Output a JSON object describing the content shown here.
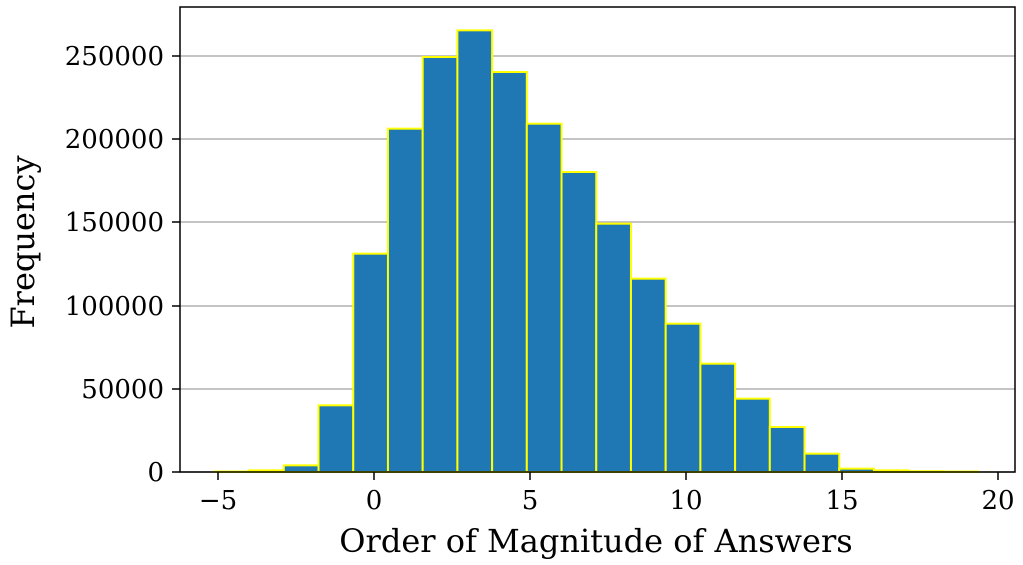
{
  "chart_data": {
    "type": "bar",
    "xlabel": "Order of Magnitude of Answers",
    "ylabel": "Frequency",
    "xlim": [
      -6.2,
      20.5
    ],
    "ylim": [
      0,
      279000
    ],
    "x_ticks": [
      -5,
      0,
      5,
      10,
      15,
      20
    ],
    "x_tick_labels": [
      "−5",
      "0",
      "5",
      "10",
      "15",
      "20"
    ],
    "y_ticks": [
      0,
      50000,
      100000,
      150000,
      200000,
      250000
    ],
    "y_tick_labels": [
      "0",
      "50000",
      "100000",
      "150000",
      "200000",
      "250000"
    ],
    "grid": "horizontal",
    "bin_edges": [
      -5.1,
      -3.99,
      -2.88,
      -1.77,
      -0.66,
      0.45,
      1.56,
      2.67,
      3.78,
      4.89,
      6.0,
      7.11,
      8.22,
      9.33,
      10.44,
      11.55,
      12.66,
      13.77,
      14.88,
      15.99,
      17.1,
      18.21,
      19.32
    ],
    "values": [
      300,
      1000,
      4000,
      40000,
      131000,
      206000,
      249000,
      265000,
      240000,
      209000,
      180000,
      149000,
      116000,
      89000,
      65000,
      44000,
      27000,
      11000,
      2000,
      1000,
      500,
      300
    ],
    "colors": {
      "bar_fill": "#1f77b4",
      "bar_edge": "#ffff00",
      "grid": "#b0b0b0",
      "axis": "#000000"
    }
  }
}
